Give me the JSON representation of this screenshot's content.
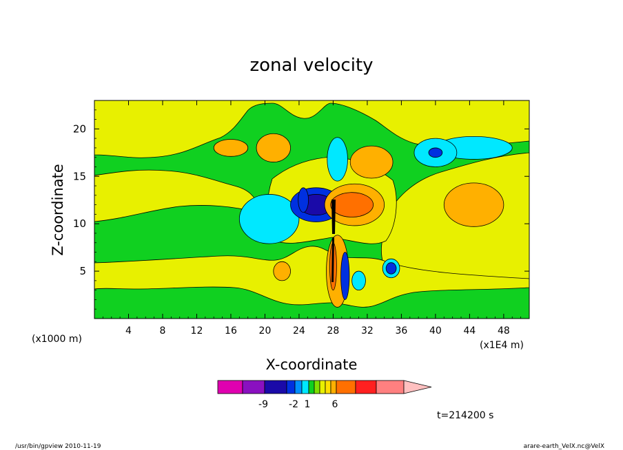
{
  "chart_data": {
    "type": "heatmap",
    "title": "zonal velocity",
    "xlabel": "X-coordinate",
    "ylabel": "Z-coordinate",
    "x_unit_label": "(x1000 m)",
    "x_scale_label": "(x1E4 m)",
    "x_ticks": [
      "4",
      "8",
      "12",
      "16",
      "20",
      "24",
      "28",
      "32",
      "36",
      "40",
      "44",
      "48"
    ],
    "x_tick_values": [
      4,
      8,
      12,
      16,
      20,
      24,
      28,
      32,
      36,
      40,
      44,
      48
    ],
    "y_ticks": [
      "5",
      "10",
      "15",
      "20"
    ],
    "y_tick_values": [
      5,
      10,
      15,
      20
    ],
    "xlim": [
      0,
      51
    ],
    "ylim": [
      0,
      23
    ],
    "time_label": "t=214200 s",
    "colorbar": {
      "colors": [
        "#e000b0",
        "#8a10c0",
        "#1a0aa8",
        "#0030e0",
        "#0090ff",
        "#00e8ff",
        "#10d020",
        "#80e000",
        "#e8f000",
        "#ffe000",
        "#ffb000",
        "#ff7000",
        "#ff2020",
        "#ff8080",
        "#ffc0c0"
      ],
      "tick_labels": [
        "-9",
        "-2",
        "1",
        "6"
      ]
    },
    "blobs": [
      {
        "color": "#00e8ff",
        "x": 20.5,
        "y": 10.5,
        "rx": 3.5,
        "ry": 2.6
      },
      {
        "color": "#00e8ff",
        "x": 44.5,
        "y": 18.0,
        "rx": 4.5,
        "ry": 1.2
      },
      {
        "color": "#00e8ff",
        "x": 40.0,
        "y": 17.5,
        "rx": 2.5,
        "ry": 1.5
      },
      {
        "color": "#0030e0",
        "x": 40.0,
        "y": 17.5,
        "rx": 0.8,
        "ry": 0.5
      },
      {
        "color": "#ffb000",
        "x": 44.5,
        "y": 12.0,
        "rx": 3.5,
        "ry": 2.3
      },
      {
        "color": "#ffb000",
        "x": 21.0,
        "y": 18.0,
        "rx": 2.0,
        "ry": 1.5
      },
      {
        "color": "#ffb000",
        "x": 32.5,
        "y": 16.5,
        "rx": 2.5,
        "ry": 1.7
      },
      {
        "color": "#ffb000",
        "x": 16.0,
        "y": 18.0,
        "rx": 2.0,
        "ry": 0.9
      },
      {
        "color": "#ffb000",
        "x": 22.0,
        "y": 5.0,
        "rx": 1.0,
        "ry": 1.0
      },
      {
        "color": "#00e8ff",
        "x": 28.5,
        "y": 16.8,
        "rx": 1.2,
        "ry": 2.3
      },
      {
        "color": "#0030e0",
        "x": 26.0,
        "y": 12.0,
        "rx": 3.0,
        "ry": 1.8
      },
      {
        "color": "#1a0aa8",
        "x": 26.0,
        "y": 12.0,
        "rx": 2.0,
        "ry": 1.1
      },
      {
        "color": "#0030e0",
        "x": 24.5,
        "y": 12.5,
        "rx": 0.6,
        "ry": 1.3
      },
      {
        "color": "#ffb000",
        "x": 30.5,
        "y": 12.0,
        "rx": 3.5,
        "ry": 2.2
      },
      {
        "color": "#ff7000",
        "x": 30.2,
        "y": 12.0,
        "rx": 2.5,
        "ry": 1.3
      },
      {
        "color": "#00e8ff",
        "x": 34.8,
        "y": 5.3,
        "rx": 1.0,
        "ry": 1.0
      },
      {
        "color": "#0030e0",
        "x": 34.8,
        "y": 5.3,
        "rx": 0.6,
        "ry": 0.6
      },
      {
        "color": "#ffb000",
        "x": 28.5,
        "y": 5.0,
        "rx": 1.3,
        "ry": 3.8
      },
      {
        "color": "#0030e0",
        "x": 29.4,
        "y": 4.5,
        "rx": 0.5,
        "ry": 2.5
      },
      {
        "color": "#ff7000",
        "x": 28.0,
        "y": 5.5,
        "rx": 0.4,
        "ry": 2.5
      },
      {
        "color": "#00e8ff",
        "x": 31.0,
        "y": 4.0,
        "rx": 0.8,
        "ry": 1.0
      }
    ]
  },
  "footer": {
    "left": "/usr/bin/gpview   2010-11-19",
    "right": "arare-earth_VelX.nc@VelX"
  }
}
